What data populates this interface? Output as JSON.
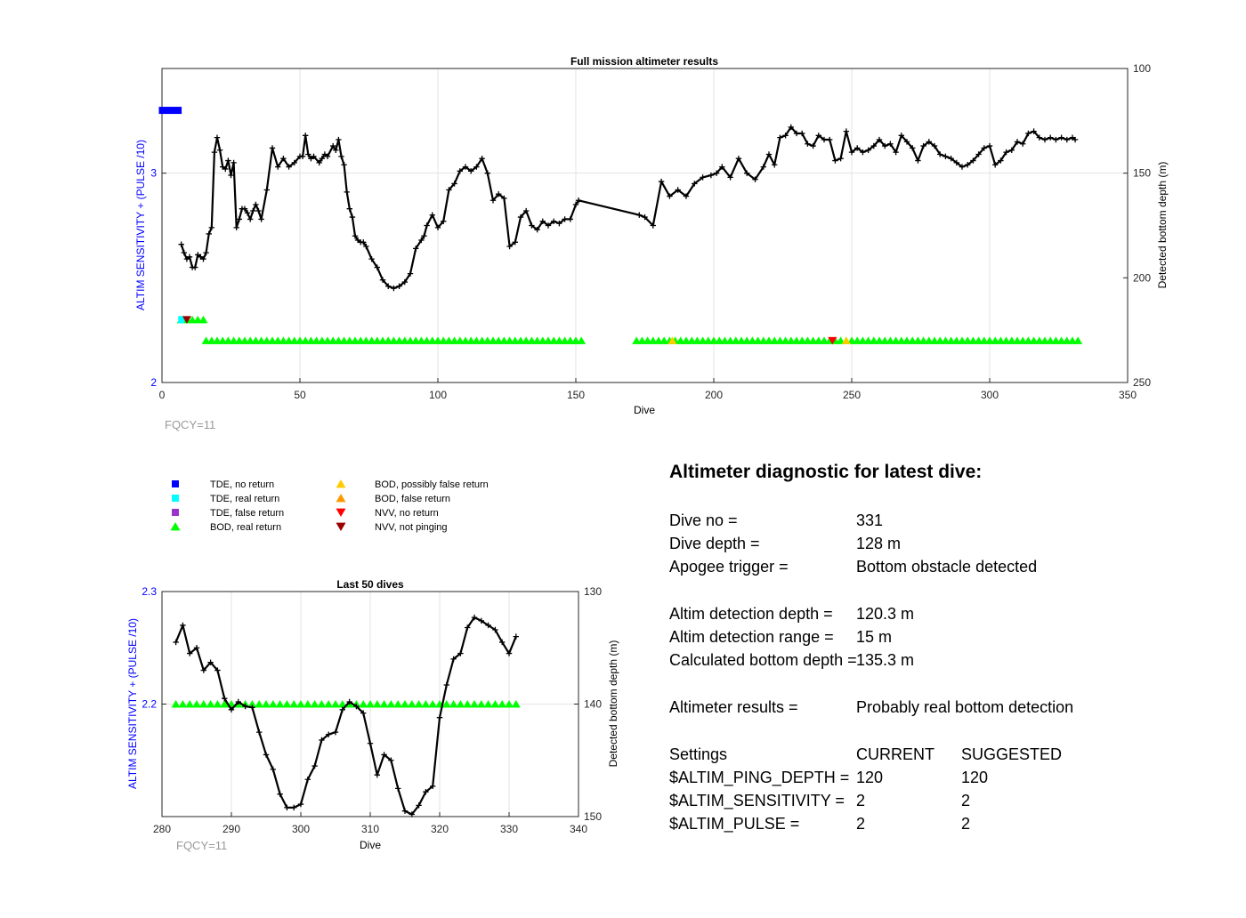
{
  "chart_data": [
    {
      "type": "scatter",
      "title": "Full mission altimeter results",
      "xlabel": "Dive",
      "ylabel": "ALTIM SENSITIVITY + (PULSE /10)",
      "y2label": "Detected bottom depth (m)",
      "xlim": [
        0,
        350
      ],
      "ylim": [
        2,
        3.5
      ],
      "y2lim": [
        100,
        250
      ],
      "y2_reversed": true,
      "xticks": [
        "0",
        "50",
        "100",
        "150",
        "200",
        "250",
        "300",
        "350"
      ],
      "yticks": [
        "2",
        "3"
      ],
      "y2ticks": [
        "100",
        "150",
        "200",
        "250"
      ],
      "grid": true,
      "footnote": "FQCY=11",
      "series": [
        {
          "name": "Detected bottom depth",
          "marker": "plus",
          "color": "#000000",
          "axis": "right",
          "x": [
            7,
            8,
            9,
            10,
            11,
            12,
            13,
            14,
            15,
            16,
            17,
            18,
            19,
            20,
            21,
            22,
            23,
            24,
            25,
            26,
            27,
            28,
            29,
            30,
            31,
            32,
            33,
            34,
            35,
            36,
            38,
            40,
            42,
            44,
            46,
            48,
            50,
            51,
            52,
            53,
            54,
            55,
            57,
            58,
            59,
            60,
            62,
            63,
            64,
            65,
            66,
            67,
            68,
            69,
            70,
            71,
            72,
            73,
            74,
            76,
            78,
            80,
            82,
            84,
            86,
            88,
            90,
            92,
            94,
            95,
            96,
            98,
            100,
            102,
            104,
            106,
            108,
            110,
            112,
            114,
            116,
            118,
            120,
            122,
            124,
            126,
            128,
            130,
            132,
            134,
            136,
            138,
            140,
            142,
            144,
            146,
            148,
            150,
            151,
            173,
            175,
            178,
            181,
            184,
            187,
            190,
            193,
            196,
            199,
            201,
            203,
            206,
            209,
            212,
            215,
            218,
            220,
            222,
            224,
            226,
            228,
            230,
            232,
            234,
            236,
            238,
            240,
            242,
            244,
            246,
            248,
            250,
            252,
            254,
            256,
            258,
            260,
            262,
            264,
            266,
            268,
            270,
            272,
            274,
            276,
            278,
            280,
            282,
            284,
            286,
            288,
            290,
            292,
            294,
            296,
            298,
            300,
            302,
            304,
            306,
            308,
            310,
            312,
            314,
            316,
            318,
            320,
            322,
            324,
            326,
            328,
            330,
            331
          ],
          "y": [
            184,
            188,
            191,
            190,
            195,
            195,
            189,
            190,
            191,
            188,
            179,
            176,
            140,
            133,
            139,
            147,
            148,
            144,
            151,
            145,
            176,
            172,
            167,
            167,
            169,
            172,
            168,
            165,
            168,
            172,
            158,
            138,
            147,
            143,
            147,
            145,
            142,
            142,
            132,
            141,
            143,
            142,
            145,
            143,
            141,
            142,
            137,
            139,
            134,
            142,
            146,
            159,
            167,
            171,
            180,
            182,
            183,
            183,
            185,
            191,
            195,
            201,
            204,
            205,
            204,
            202,
            198,
            186,
            182,
            180,
            175,
            170,
            176,
            173,
            158,
            155,
            149,
            147,
            149,
            147,
            143,
            150,
            163,
            160,
            162,
            185,
            183,
            171,
            168,
            175,
            177,
            173,
            175,
            173,
            174,
            172,
            172,
            165,
            163,
            170,
            171,
            175,
            154,
            161,
            158,
            161,
            155,
            152,
            151,
            150,
            147,
            152,
            143,
            150,
            153,
            147,
            141,
            146,
            133,
            132,
            128,
            131,
            131,
            136,
            137,
            132,
            134,
            134,
            144,
            143,
            130,
            140,
            138,
            140,
            139,
            137,
            134,
            137,
            136,
            140,
            132,
            135,
            138,
            144,
            137,
            135,
            137,
            141,
            142,
            143,
            145,
            147,
            146,
            144,
            141,
            138,
            137,
            146,
            144,
            140,
            139,
            135,
            136,
            131,
            130,
            133,
            134,
            133,
            134,
            133,
            134,
            133,
            134
          ],
          "y_note": "approximate, read from right axis"
        },
        {
          "name": "BOD, real return",
          "marker": "triangle-up",
          "color": "#00ff00",
          "axis": "left",
          "segments": [
            [
              7,
              16,
              2.3
            ],
            [
              16,
              148,
              2.2
            ],
            [
              148,
              152,
              2.2
            ],
            [
              172,
              332,
              2.2
            ]
          ]
        },
        {
          "name": "TDE, no return",
          "marker": "square",
          "color": "#0000ff",
          "axis": "left",
          "segments": [
            [
              0,
              7,
              3.3
            ]
          ]
        }
      ]
    },
    {
      "type": "scatter",
      "title": "Last 50 dives",
      "xlabel": "Dive",
      "ylabel": "ALTIM SENSITIVITY + (PULSE /10)",
      "y2label": "Detected bottom depth (m)",
      "xlim": [
        280,
        340
      ],
      "ylim": [
        2.1,
        2.3
      ],
      "y2lim": [
        130,
        150
      ],
      "y2_reversed": true,
      "xticks": [
        "280",
        "290",
        "300",
        "310",
        "320",
        "330",
        "340"
      ],
      "yticks": [
        "2.2",
        "2.3"
      ],
      "y2ticks": [
        "130",
        "140",
        "150"
      ],
      "grid": true,
      "footnote": "FQCY=11",
      "series": [
        {
          "name": "Detected bottom depth",
          "marker": "plus",
          "color": "#000000",
          "axis": "right",
          "x": [
            282,
            283,
            284,
            285,
            286,
            287,
            288,
            289,
            290,
            291,
            292,
            293,
            294,
            295,
            296,
            297,
            298,
            299,
            300,
            301,
            302,
            303,
            304,
            305,
            306,
            307,
            308,
            309,
            310,
            311,
            312,
            313,
            314,
            315,
            316,
            317,
            318,
            319,
            320,
            321,
            322,
            323,
            324,
            325,
            326,
            327,
            328,
            329,
            330,
            331
          ],
          "y": [
            134.5,
            133,
            135.5,
            135,
            137,
            136.3,
            137,
            139.5,
            140.5,
            139.8,
            140.2,
            140.3,
            142.5,
            144.5,
            145.8,
            148,
            149.2,
            149.2,
            148.9,
            146.7,
            145.5,
            143.2,
            142.7,
            142.5,
            140.5,
            139.8,
            140.2,
            140.8,
            143.5,
            146.3,
            144.5,
            145,
            147.5,
            149.5,
            149.8,
            149,
            147.8,
            147.3,
            141.2,
            138.3,
            136,
            135.5,
            133.2,
            132.3,
            132.6,
            133,
            133.4,
            134.5,
            135.5,
            134
          ]
        },
        {
          "name": "BOD, real return",
          "marker": "triangle-up",
          "color": "#00ff00",
          "axis": "left",
          "segments": [
            [
              282,
              331,
              2.2
            ]
          ]
        }
      ]
    }
  ],
  "legend": {
    "col1": [
      {
        "label": "TDE, no return",
        "marker": "square",
        "color": "#0000ff"
      },
      {
        "label": "TDE, real return",
        "marker": "square",
        "color": "#00ffff"
      },
      {
        "label": "TDE, false return",
        "marker": "square",
        "color": "#9933cc"
      },
      {
        "label": "BOD, real return",
        "marker": "triangle-up",
        "color": "#00ff00"
      }
    ],
    "col2": [
      {
        "label": "BOD, possibly false return",
        "marker": "triangle-up",
        "color": "#ffcc00"
      },
      {
        "label": "BOD, false return",
        "marker": "triangle-up",
        "color": "#ff9900"
      },
      {
        "label": "NVV, no return",
        "marker": "triangle-down",
        "color": "#ff0000"
      },
      {
        "label": "NVV, not pinging",
        "marker": "triangle-down",
        "color": "#990000"
      }
    ]
  },
  "diagnostic": {
    "title": "Altimeter diagnostic for latest dive:",
    "dive_no_label": "Dive no =",
    "dive_no_value": "331",
    "dive_depth_label": "Dive depth =",
    "dive_depth_value": "128 m",
    "apogee_label": "Apogee trigger =",
    "apogee_value": "Bottom obstacle detected",
    "altim_depth_label": "Altim detection depth =",
    "altim_depth_value": "120.3 m",
    "altim_range_label": "Altim detection range =",
    "altim_range_value": "15 m",
    "calc_depth_label": "Calculated bottom depth =",
    "calc_depth_value": "135.3 m",
    "results_label": "Altimeter results =",
    "results_value": "Probably real bottom detection",
    "settings_label": "Settings",
    "current_label": "CURRENT",
    "suggested_label": "SUGGESTED",
    "ping_depth_label": "$ALTIM_PING_DEPTH =",
    "ping_depth_current": "120",
    "ping_depth_suggested": "120",
    "sensitivity_label": "$ALTIM_SENSITIVITY =",
    "sensitivity_current": "2",
    "sensitivity_suggested": "2",
    "pulse_label": "$ALTIM_PULSE =",
    "pulse_current": "2",
    "pulse_suggested": "2"
  }
}
